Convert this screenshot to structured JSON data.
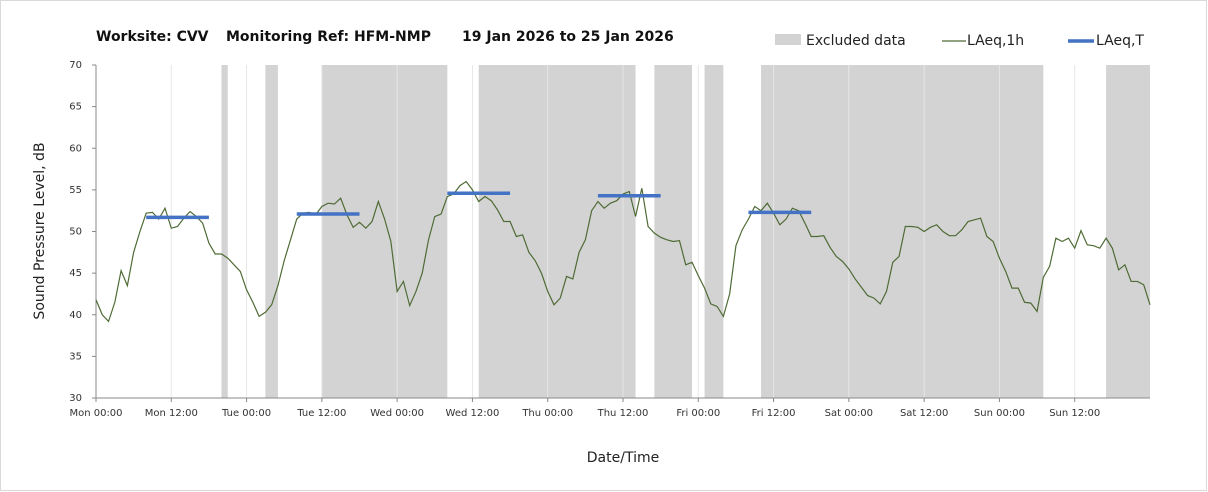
{
  "chart_data": {
    "type": "line",
    "title": [
      "Worksite: CVV",
      "Monitoring Ref: HFM-NMP",
      "19 Jan 2026 to 25 Jan 2026"
    ],
    "xlabel": "Date/Time",
    "ylabel": "Sound Pressure Level, dB",
    "xlim": [
      0,
      168
    ],
    "ylim": [
      30,
      70
    ],
    "yticks": [
      30,
      35,
      40,
      45,
      50,
      55,
      60,
      65,
      70
    ],
    "xticks": [
      {
        "value": 0,
        "label": "Mon 00:00"
      },
      {
        "value": 12,
        "label": "Mon 12:00"
      },
      {
        "value": 24,
        "label": "Tue 00:00"
      },
      {
        "value": 36,
        "label": "Tue 12:00"
      },
      {
        "value": 48,
        "label": "Wed 00:00"
      },
      {
        "value": 60,
        "label": "Wed 12:00"
      },
      {
        "value": 72,
        "label": "Thu 00:00"
      },
      {
        "value": 84,
        "label": "Thu 12:00"
      },
      {
        "value": 96,
        "label": "Fri 00:00"
      },
      {
        "value": 108,
        "label": "Fri 12:00"
      },
      {
        "value": 120,
        "label": "Sat 00:00"
      },
      {
        "value": 132,
        "label": "Sat 12:00"
      },
      {
        "value": 144,
        "label": "Sun 00:00"
      },
      {
        "value": 156,
        "label": "Sun 12:00"
      }
    ],
    "grid": "x",
    "excluded": {
      "name": "Excluded data",
      "color": "#d3d3d3",
      "ranges": [
        [
          20,
          21
        ],
        [
          27,
          29
        ],
        [
          36,
          56
        ],
        [
          61,
          86
        ],
        [
          89,
          95
        ],
        [
          97,
          100
        ],
        [
          106,
          151
        ],
        [
          161,
          168
        ]
      ]
    },
    "series": [
      {
        "name": "LAeq,1h",
        "color": "#4f6b35",
        "x": [
          0,
          1,
          2,
          3,
          4,
          5,
          6,
          7,
          8,
          9,
          10,
          11,
          12,
          13,
          14,
          15,
          16,
          17,
          18,
          19,
          20,
          21,
          22,
          23,
          24,
          25,
          26,
          27,
          28,
          29,
          30,
          31,
          32,
          33,
          34,
          35,
          36,
          37,
          38,
          39,
          40,
          41,
          42,
          43,
          44,
          45,
          46,
          47,
          48,
          49,
          50,
          51,
          52,
          53,
          54,
          55,
          56,
          57,
          58,
          59,
          60,
          61,
          62,
          63,
          64,
          65,
          66,
          67,
          68,
          69,
          70,
          71,
          72,
          73,
          74,
          75,
          76,
          77,
          78,
          79,
          80,
          81,
          82,
          83,
          84,
          85,
          86,
          87,
          88,
          89,
          90,
          91,
          92,
          93,
          94,
          95,
          96,
          97,
          98,
          99,
          100,
          101,
          102,
          103,
          104,
          105,
          106,
          107,
          108,
          109,
          110,
          111,
          112,
          113,
          114,
          115,
          116,
          117,
          118,
          119,
          120,
          121,
          122,
          123,
          124,
          125,
          126,
          127,
          128,
          129,
          130,
          131,
          132,
          133,
          134,
          135,
          136,
          137,
          138,
          139,
          140,
          141,
          142,
          143,
          144,
          145,
          146,
          147,
          148,
          149,
          150,
          151,
          152,
          153,
          154,
          155,
          156,
          157,
          158,
          159,
          160,
          161,
          162,
          163,
          164,
          165,
          166,
          167,
          168
        ],
        "values": [
          41.8,
          40,
          39.2,
          41.5,
          45.3,
          43.5,
          47.5,
          50,
          52.2,
          52.3,
          51.5,
          52.8,
          50.4,
          50.6,
          51.6,
          52.4,
          51.8,
          51,
          48.6,
          47.3,
          47.3,
          46.8,
          46,
          45.2,
          43,
          41.5,
          39.8,
          40.3,
          41.2,
          43.5,
          46.5,
          49,
          51.5,
          52.2,
          52.3,
          52,
          53,
          53.4,
          53.3,
          54,
          52,
          50.5,
          51.1,
          50.4,
          51.2,
          53.6,
          51.5,
          48.8,
          42.8,
          44,
          41.1,
          42.8,
          45,
          49,
          51.8,
          52.1,
          54.2,
          54.5,
          55.5,
          56,
          55,
          53.6,
          54.2,
          53.7,
          52.6,
          51.2,
          51.2,
          49.4,
          49.6,
          47.5,
          46.5,
          45,
          42.8,
          41.2,
          42,
          44.6,
          44.3,
          47.5,
          49,
          52.5,
          53.6,
          52.8,
          53.4,
          53.7,
          54.5,
          54.8,
          51.8,
          55.2,
          50.6,
          49.8,
          49.3,
          49,
          48.8,
          48.9,
          46,
          46.3,
          44.7,
          43.2,
          41.3,
          41,
          39.8,
          42.5,
          48.3,
          50.2,
          51.5,
          53,
          52.5,
          53.4,
          52.2,
          50.8,
          51.5,
          52.8,
          52.5,
          51,
          49.4,
          49.4,
          49.5,
          48.1,
          47,
          46.4,
          45.5,
          44.3,
          43.3,
          42.3,
          42,
          41.3,
          42.8,
          46.3,
          47,
          50.6,
          50.6,
          50.5,
          50,
          50.5,
          50.8,
          50,
          49.5,
          49.5,
          50.2,
          51.2,
          51.4,
          51.6,
          49.4,
          48.8,
          46.8,
          45.2,
          43.2,
          43.2,
          41.5,
          41.4,
          40.4,
          44.5,
          45.8,
          49.2,
          48.8,
          49.2,
          48,
          50.1,
          48.4,
          48.3,
          48,
          49.2,
          48,
          45.4,
          46,
          44,
          44,
          43.6,
          41.2
        ]
      },
      {
        "name": "LAeq,T",
        "color": "#4472c4",
        "segments": [
          {
            "x": [
              8,
              18
            ],
            "value": 51.7
          },
          {
            "x": [
              32,
              42
            ],
            "value": 52.1
          },
          {
            "x": [
              56,
              66
            ],
            "value": 54.6
          },
          {
            "x": [
              80,
              90
            ],
            "value": 54.3
          },
          {
            "x": [
              104,
              114
            ],
            "value": 52.3
          }
        ]
      }
    ]
  }
}
